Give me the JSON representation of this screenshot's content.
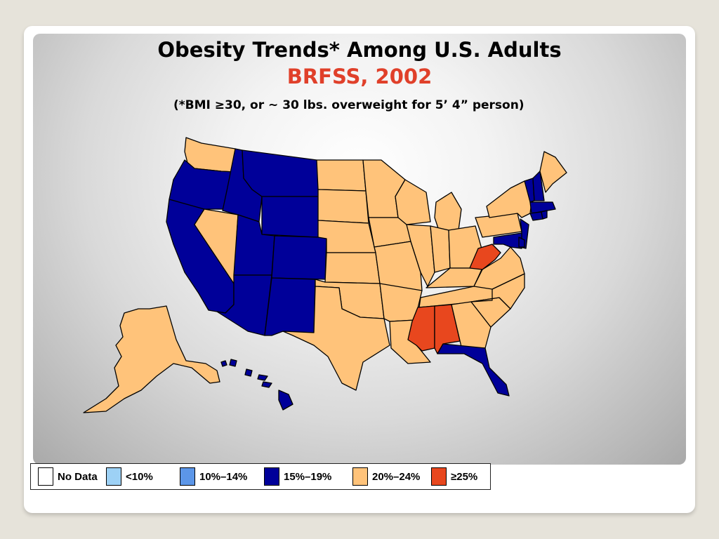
{
  "title": "Obesity Trends* Among U.S. Adults",
  "subtitle": "BRFSS, 2002",
  "note": "(*BMI ≥30, or ~ 30 lbs. overweight for 5’ 4” person)",
  "colors": {
    "no_data": "#ffffff",
    "lt10": "#9dd1f5",
    "p10_14": "#5c96e8",
    "p15_19": "#000099",
    "p20_24": "#ffc37a",
    "gte25": "#e8471e",
    "border": "#000000"
  },
  "legend": [
    {
      "label": "No Data",
      "color_key": "no_data"
    },
    {
      "label": "<10%",
      "color_key": "lt10"
    },
    {
      "label": "10%–14%",
      "color_key": "p10_14"
    },
    {
      "label": "15%–19%",
      "color_key": "p15_19"
    },
    {
      "label": "20%–24%",
      "color_key": "p20_24"
    },
    {
      "label": "≥25%",
      "color_key": "gte25"
    }
  ],
  "states": {
    "WA": "p20_24",
    "OR": "p15_19",
    "CA": "p15_19",
    "NV": "p20_24",
    "ID": "p15_19",
    "MT": "p15_19",
    "WY": "p15_19",
    "UT": "p15_19",
    "AZ": "p15_19",
    "CO": "p15_19",
    "NM": "p15_19",
    "ND": "p20_24",
    "SD": "p20_24",
    "NE": "p20_24",
    "KS": "p20_24",
    "OK": "p20_24",
    "TX": "p20_24",
    "MN": "p20_24",
    "IA": "p20_24",
    "MO": "p20_24",
    "AR": "p20_24",
    "LA": "p20_24",
    "WI": "p20_24",
    "IL": "p20_24",
    "MI": "p20_24",
    "IN": "p20_24",
    "OH": "p20_24",
    "KY": "p20_24",
    "TN": "p20_24",
    "MS": "gte25",
    "AL": "gte25",
    "GA": "p20_24",
    "FL": "p15_19",
    "SC": "p20_24",
    "NC": "p20_24",
    "VA": "p20_24",
    "WV": "gte25",
    "MD": "p15_19",
    "DE": "p15_19",
    "NJ": "p15_19",
    "PA": "p20_24",
    "NY": "p20_24",
    "CT": "p15_19",
    "RI": "p15_19",
    "MA": "p15_19",
    "VT": "p15_19",
    "NH": "p15_19",
    "ME": "p20_24",
    "AK": "p20_24",
    "HI": "p15_19"
  }
}
